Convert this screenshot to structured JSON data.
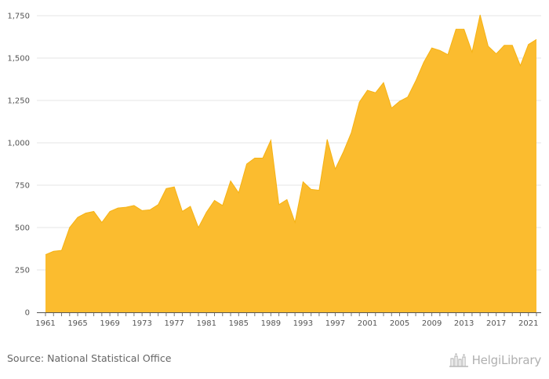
{
  "chart_data": {
    "type": "area",
    "title": "",
    "xlabel": "",
    "ylabel": "",
    "x": [
      1961,
      1962,
      1963,
      1964,
      1965,
      1966,
      1967,
      1968,
      1969,
      1970,
      1971,
      1972,
      1973,
      1974,
      1975,
      1976,
      1977,
      1978,
      1979,
      1980,
      1981,
      1982,
      1983,
      1984,
      1985,
      1986,
      1987,
      1988,
      1989,
      1990,
      1991,
      1992,
      1993,
      1994,
      1995,
      1996,
      1997,
      1998,
      1999,
      2000,
      2001,
      2002,
      2003,
      2004,
      2005,
      2006,
      2007,
      2008,
      2009,
      2010,
      2011,
      2012,
      2013,
      2014,
      2015,
      2016,
      2017,
      2018,
      2019,
      2020,
      2021,
      2022
    ],
    "values": [
      340,
      360,
      365,
      500,
      560,
      585,
      595,
      530,
      595,
      615,
      620,
      630,
      600,
      605,
      635,
      730,
      740,
      595,
      625,
      500,
      590,
      660,
      630,
      775,
      705,
      875,
      910,
      910,
      1015,
      635,
      665,
      530,
      770,
      725,
      720,
      1020,
      845,
      945,
      1060,
      1240,
      1310,
      1295,
      1355,
      1205,
      1245,
      1270,
      1365,
      1475,
      1560,
      1545,
      1520,
      1670,
      1670,
      1535,
      1755,
      1570,
      1525,
      1575,
      1575,
      1455,
      1580,
      1610
    ],
    "xticks": [
      "1961",
      "1965",
      "1969",
      "1973",
      "1977",
      "1981",
      "1985",
      "1989",
      "1993",
      "1997",
      "2001",
      "2005",
      "2009",
      "2013",
      "2017",
      "2021"
    ],
    "yticks": [
      "0",
      "250",
      "500",
      "750",
      "1,000",
      "1,250",
      "1,500",
      "1,750"
    ],
    "ylim": [
      0,
      1750
    ],
    "grid": true,
    "fill_color": "#fbbc2f",
    "line_color": "#f5b214",
    "grid_color": "#e6e6e6"
  },
  "footer": {
    "source": "Source: National Statistical Office",
    "brand": "HelgiLibrary"
  },
  "icons": {
    "brand_logo": "helgi-library-logo"
  }
}
